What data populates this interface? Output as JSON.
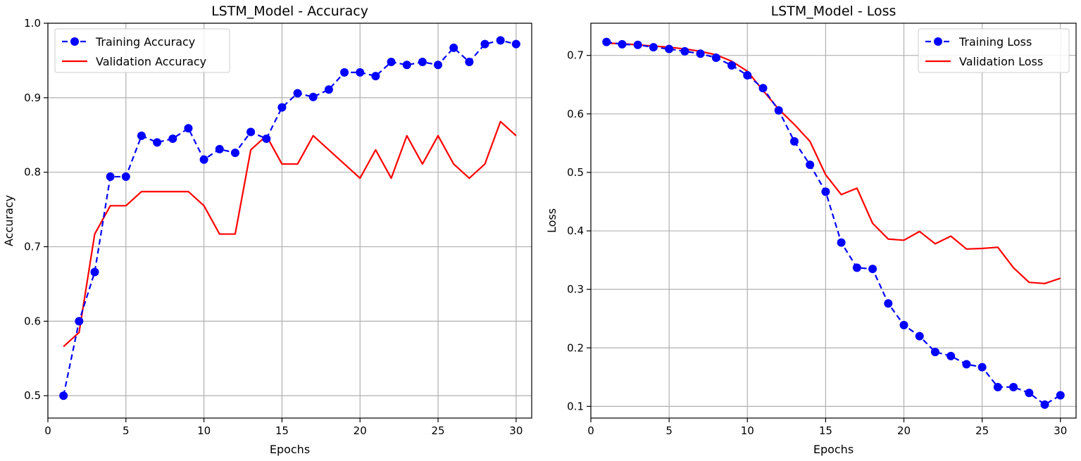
{
  "chart_data": [
    {
      "type": "line",
      "title": "LSTM_Model - Accuracy",
      "xlabel": "Epochs",
      "ylabel": "Accuracy",
      "xlim": [
        0,
        31
      ],
      "ylim": [
        0.47,
        1.0
      ],
      "xticks": [
        0,
        5,
        10,
        15,
        20,
        25,
        30
      ],
      "yticks": [
        0.5,
        0.6,
        0.7,
        0.8,
        0.9,
        1.0
      ],
      "ytick_labels": [
        "0.5",
        "0.6",
        "0.7",
        "0.8",
        "0.9",
        "1.0"
      ],
      "grid": true,
      "legend_position": "top-left",
      "x": [
        1,
        2,
        3,
        4,
        5,
        6,
        7,
        8,
        9,
        10,
        11,
        12,
        13,
        14,
        15,
        16,
        17,
        18,
        19,
        20,
        21,
        22,
        23,
        24,
        25,
        26,
        27,
        28,
        29,
        30
      ],
      "series": [
        {
          "name": "Training Accuracy",
          "color": "#0000ff",
          "style": "dashed-markers",
          "values": [
            0.5,
            0.6,
            0.666,
            0.794,
            0.794,
            0.849,
            0.84,
            0.845,
            0.859,
            0.817,
            0.831,
            0.826,
            0.854,
            0.845,
            0.887,
            0.906,
            0.901,
            0.911,
            0.934,
            0.934,
            0.929,
            0.948,
            0.944,
            0.948,
            0.944,
            0.967,
            0.948,
            0.972,
            0.977,
            0.972
          ]
        },
        {
          "name": "Validation Accuracy",
          "color": "#ff0000",
          "style": "solid",
          "values": [
            0.566,
            0.585,
            0.717,
            0.755,
            0.755,
            0.774,
            0.774,
            0.774,
            0.774,
            0.755,
            0.717,
            0.717,
            0.83,
            0.849,
            0.811,
            0.811,
            0.849,
            0.83,
            0.811,
            0.792,
            0.83,
            0.792,
            0.849,
            0.811,
            0.849,
            0.811,
            0.792,
            0.811,
            0.868,
            0.849
          ]
        }
      ]
    },
    {
      "type": "line",
      "title": "LSTM_Model - Loss",
      "xlabel": "Epochs",
      "ylabel": "Loss",
      "xlim": [
        0,
        31
      ],
      "ylim": [
        0.08,
        0.755
      ],
      "xticks": [
        0,
        5,
        10,
        15,
        20,
        25,
        30
      ],
      "yticks": [
        0.1,
        0.2,
        0.3,
        0.4,
        0.5,
        0.6,
        0.7
      ],
      "ytick_labels": [
        "0.1",
        "0.2",
        "0.3",
        "0.4",
        "0.5",
        "0.6",
        "0.7"
      ],
      "grid": true,
      "legend_position": "top-right",
      "x": [
        1,
        2,
        3,
        4,
        5,
        6,
        7,
        8,
        9,
        10,
        11,
        12,
        13,
        14,
        15,
        16,
        17,
        18,
        19,
        20,
        21,
        22,
        23,
        24,
        25,
        26,
        27,
        28,
        29,
        30
      ],
      "series": [
        {
          "name": "Training Loss",
          "color": "#0000ff",
          "style": "dashed-markers",
          "values": [
            0.723,
            0.719,
            0.718,
            0.714,
            0.711,
            0.707,
            0.703,
            0.696,
            0.683,
            0.666,
            0.644,
            0.606,
            0.553,
            0.513,
            0.467,
            0.38,
            0.337,
            0.335,
            0.276,
            0.239,
            0.22,
            0.193,
            0.186,
            0.172,
            0.167,
            0.133,
            0.133,
            0.123,
            0.103,
            0.119
          ]
        },
        {
          "name": "Validation Loss",
          "color": "#ff0000",
          "style": "solid",
          "values": [
            0.721,
            0.72,
            0.718,
            0.716,
            0.714,
            0.711,
            0.707,
            0.701,
            0.69,
            0.673,
            0.64,
            0.608,
            0.582,
            0.553,
            0.496,
            0.462,
            0.473,
            0.413,
            0.386,
            0.384,
            0.399,
            0.378,
            0.391,
            0.369,
            0.37,
            0.372,
            0.337,
            0.312,
            0.31,
            0.319
          ]
        }
      ]
    }
  ]
}
